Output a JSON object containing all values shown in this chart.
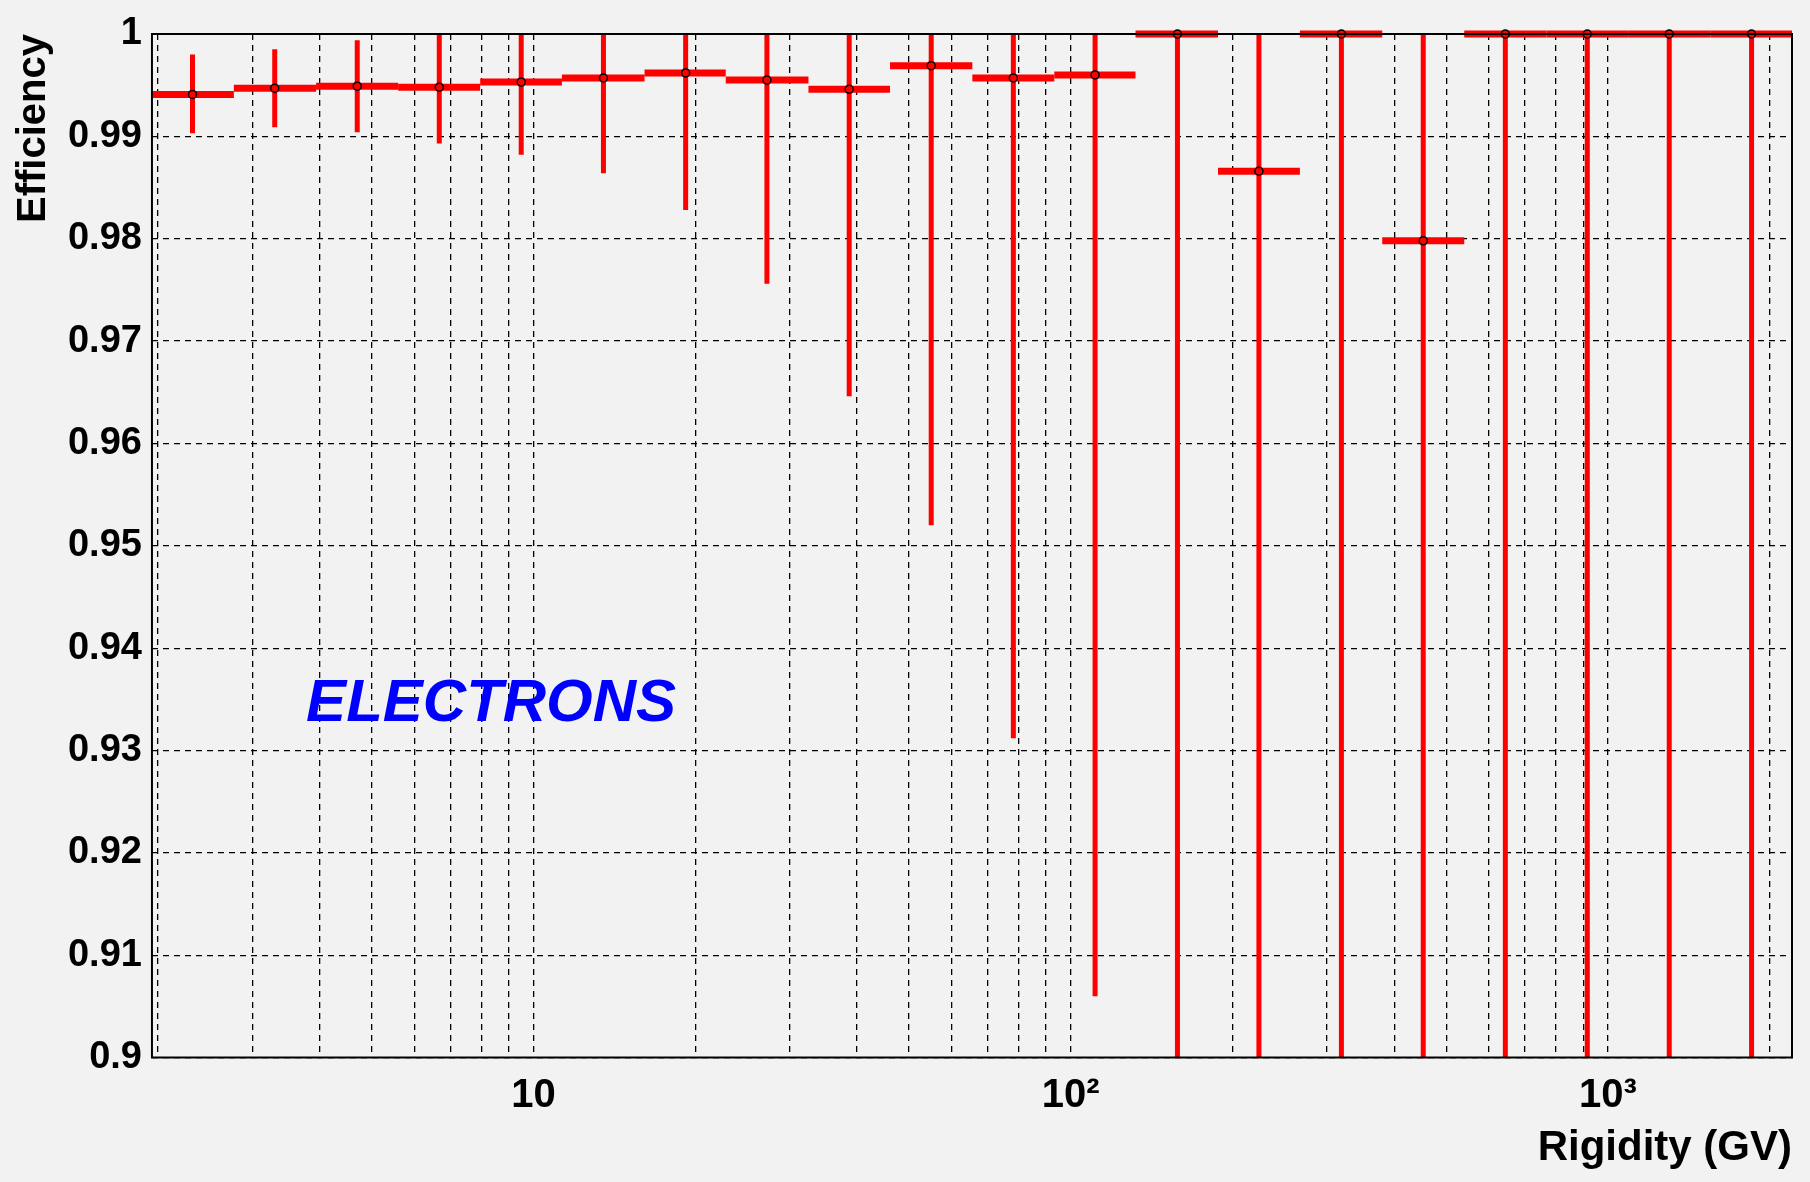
{
  "chart_data": {
    "type": "scatter",
    "xlabel": "Rigidity (GV)",
    "ylabel": "Efficiency",
    "log": "x",
    "grid": true,
    "color": "#ff0000",
    "marker": "circle",
    "x": [
      2.32,
      3.3,
      4.7,
      6.68,
      9.49,
      13.5,
      19.2,
      27.2,
      38.7,
      55,
      78.2,
      111,
      158,
      224,
      319,
      453,
      644,
      915,
      1300,
      1850
    ],
    "xerrors": [
      [
        1.95,
        2.77
      ],
      [
        2.77,
        3.94
      ],
      [
        3.94,
        5.6
      ],
      [
        5.6,
        7.96
      ],
      [
        7.96,
        11.3
      ],
      [
        11.3,
        16.1
      ],
      [
        16.1,
        22.8
      ],
      [
        22.8,
        32.5
      ],
      [
        32.5,
        46.1
      ],
      [
        46.1,
        65.6
      ],
      [
        65.6,
        93.2
      ],
      [
        93.2,
        132
      ],
      [
        132,
        188
      ],
      [
        188,
        267
      ],
      [
        267,
        380
      ],
      [
        380,
        540
      ],
      [
        540,
        768
      ],
      [
        768,
        1090
      ],
      [
        1090,
        1550
      ],
      [
        1550,
        2200
      ]
    ],
    "values": [
      0.9941,
      0.9947,
      0.9949,
      0.9948,
      0.9953,
      0.9957,
      0.9962,
      0.9955,
      0.9946,
      0.9969,
      0.9957,
      0.996,
      1,
      0.9866,
      1,
      0.9798,
      1,
      1,
      1,
      1
    ],
    "errors": [
      [
        0.9903,
        0.998
      ],
      [
        0.9909,
        0.9985
      ],
      [
        0.9904,
        0.9994
      ],
      [
        0.9893,
        1
      ],
      [
        0.9882,
        1
      ],
      [
        0.9864,
        1
      ],
      [
        0.9828,
        1
      ],
      [
        0.9756,
        1
      ],
      [
        0.9646,
        1
      ],
      [
        0.952,
        1
      ],
      [
        0.9312,
        1
      ],
      [
        0.906,
        1
      ],
      [
        0.9,
        1
      ],
      [
        0.9,
        1
      ],
      [
        0.9,
        1
      ],
      [
        0.9,
        1
      ],
      [
        0.9,
        1
      ],
      [
        0.9,
        1
      ],
      [
        0.9,
        1
      ],
      [
        0.9,
        1
      ]
    ],
    "xlim": [
      1.95,
      2200
    ],
    "xticks": [
      {
        "value": 2,
        "label": null
      },
      {
        "value": 3,
        "label": null
      },
      {
        "value": 4,
        "label": null
      },
      {
        "value": 5,
        "label": null
      },
      {
        "value": 6,
        "label": null
      },
      {
        "value": 7,
        "label": null
      },
      {
        "value": 8,
        "label": null
      },
      {
        "value": 9,
        "label": null
      },
      {
        "value": 10,
        "label": "10"
      },
      {
        "value": 20,
        "label": null
      },
      {
        "value": 30,
        "label": null
      },
      {
        "value": 40,
        "label": null
      },
      {
        "value": 50,
        "label": null
      },
      {
        "value": 60,
        "label": null
      },
      {
        "value": 70,
        "label": null
      },
      {
        "value": 80,
        "label": null
      },
      {
        "value": 90,
        "label": null
      },
      {
        "value": 100,
        "label": "10²"
      },
      {
        "value": 200,
        "label": null
      },
      {
        "value": 300,
        "label": null
      },
      {
        "value": 400,
        "label": null
      },
      {
        "value": 500,
        "label": null
      },
      {
        "value": 600,
        "label": null
      },
      {
        "value": 700,
        "label": null
      },
      {
        "value": 800,
        "label": null
      },
      {
        "value": 900,
        "label": null
      },
      {
        "value": 1000,
        "label": "10³"
      },
      {
        "value": 2000,
        "label": null
      }
    ],
    "ylim": [
      0.9,
      1
    ],
    "yticks": [
      0.9,
      0.91,
      0.92,
      0.93,
      0.94,
      0.95,
      0.96,
      0.97,
      0.98,
      0.99,
      1
    ],
    "annotations": [
      "ELECTRONS"
    ]
  }
}
